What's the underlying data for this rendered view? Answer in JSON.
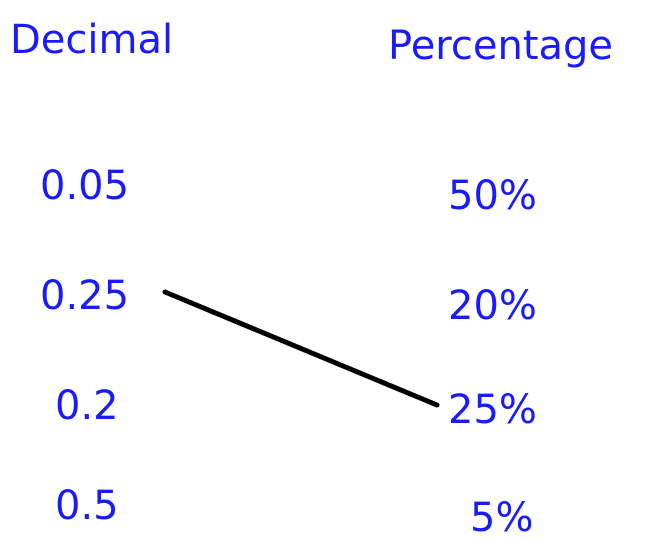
{
  "headers": {
    "decimal": "Decimal",
    "percentage": "Percentage"
  },
  "decimals": [
    "0.05",
    "0.25",
    "0.2",
    "0.5"
  ],
  "percentages": [
    "50%",
    "20%",
    "25%",
    "5%"
  ],
  "connections": [
    {
      "from": "0.25",
      "to": "25%"
    }
  ],
  "colors": {
    "text": "#1a1aff",
    "line": "#000000"
  }
}
